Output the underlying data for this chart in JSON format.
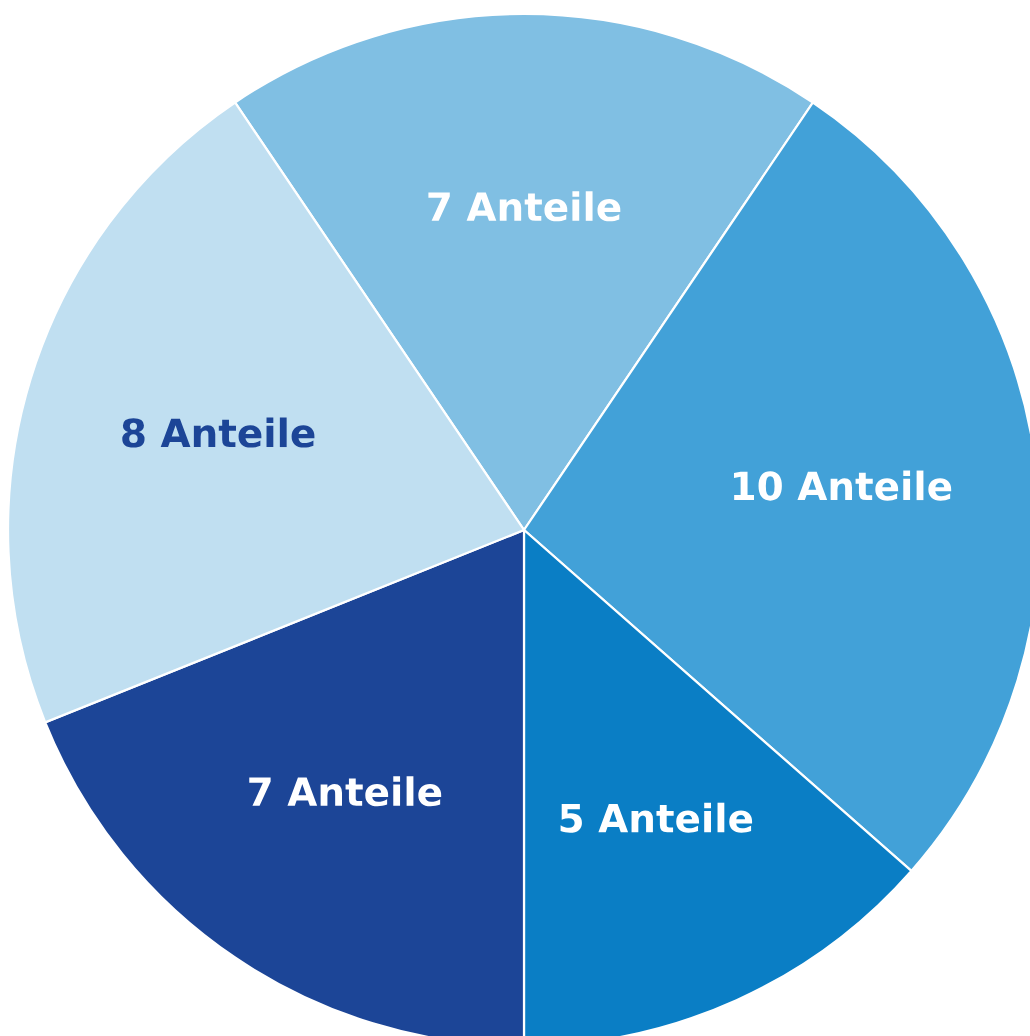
{
  "chart_data": {
    "type": "pie",
    "categories": [
      null,
      null,
      null,
      null,
      null
    ],
    "values": [
      7,
      10,
      5,
      7,
      8
    ],
    "value_labels": [
      "7 Anteile",
      "10 Anteile",
      "5 Anteile",
      "7 Anteile",
      "8 Anteile"
    ],
    "colors": [
      "#80bfe3",
      "#42a1d8",
      "#0a7ec5",
      "#1c4597",
      "#c0dff1"
    ]
  }
}
